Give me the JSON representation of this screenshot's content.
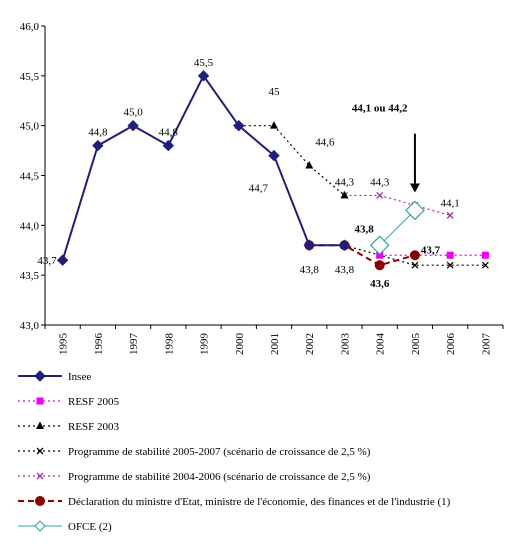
{
  "chart_data": {
    "type": "line",
    "categories": [
      "1995",
      "1996",
      "1997",
      "1998",
      "1999",
      "2000",
      "2001",
      "2002",
      "2003",
      "2004",
      "2005",
      "2006",
      "2007"
    ],
    "ylim": [
      43.0,
      46.0
    ],
    "yticks": [
      "43,0",
      "43,5",
      "44,0",
      "44,5",
      "45,0",
      "45,5",
      "46,0"
    ],
    "grid": false,
    "legend_position": "bottom",
    "series": [
      {
        "name": "Insee",
        "color": "#1f1f7a",
        "style": "solid",
        "marker": "diamond",
        "x": [
          "1995",
          "1996",
          "1997",
          "1998",
          "1999",
          "2000",
          "2001",
          "2002",
          "2003"
        ],
        "values": [
          43.65,
          44.8,
          45.0,
          44.8,
          45.5,
          45.0,
          44.7,
          43.8,
          43.8
        ]
      },
      {
        "name": "RESF 2005",
        "color": "#ee00ee",
        "style": "dotted",
        "marker": "square",
        "x": [
          "2004",
          "2005",
          "2006",
          "2007"
        ],
        "values": [
          43.7,
          43.7,
          43.7,
          43.7
        ]
      },
      {
        "name": "RESF 2003",
        "color": "#000000",
        "style": "dotted",
        "marker": "triangle",
        "x": [
          "2000",
          "2001",
          "2002",
          "2003"
        ],
        "values": [
          45.0,
          45.0,
          44.6,
          44.3
        ]
      },
      {
        "name": "Programme de stabilité 2005-2007 (scénario de croissance de 2,5 %)",
        "color": "#000000",
        "style": "dotted",
        "marker": "x",
        "x": [
          "2003",
          "2004",
          "2005",
          "2006",
          "2007"
        ],
        "values": [
          43.8,
          43.7,
          43.6,
          43.6,
          43.6
        ]
      },
      {
        "name": "Programme de stabilité 2004-2006 (scénario de croissance de 2,5 %)",
        "color": "#9b30a0",
        "style": "dotted",
        "marker": "x",
        "x": [
          "2003",
          "2004",
          "2005",
          "2006"
        ],
        "values": [
          44.3,
          44.3,
          44.2,
          44.1
        ]
      },
      {
        "name": "Déclaration du ministre d'Etat, ministre de l'économie, des finances et de l'industrie (1)",
        "color": "#8b0000",
        "style": "dashed",
        "marker": "circle",
        "x": [
          "2002",
          "2003",
          "2004",
          "2005"
        ],
        "values": [
          43.8,
          43.8,
          43.6,
          43.7
        ]
      },
      {
        "name": "OFCE (2)",
        "color": "#2fa0a8",
        "style": "solid",
        "marker": "open-diamond",
        "x": [
          "2004",
          "2005"
        ],
        "values": [
          43.8,
          44.15
        ]
      }
    ],
    "annotations": [
      {
        "text": "43,7",
        "x": "1995",
        "y": 43.65,
        "pos": "left"
      },
      {
        "text": "44,8",
        "x": "1996",
        "y": 44.8,
        "pos": "above"
      },
      {
        "text": "45,0",
        "x": "1997",
        "y": 45.0,
        "pos": "above"
      },
      {
        "text": "44,8",
        "x": "1998",
        "y": 44.8,
        "pos": "above"
      },
      {
        "text": "45,5",
        "x": "1999",
        "y": 45.5,
        "pos": "above"
      },
      {
        "text": "45",
        "x": "2001",
        "y": 45.35,
        "pos": "center"
      },
      {
        "text": "44,6",
        "x": "2002",
        "y": 44.84,
        "pos": "right"
      },
      {
        "text": "44,7",
        "x": "2001",
        "y": 44.38,
        "pos": "left"
      },
      {
        "text": "44,3",
        "x": "2003",
        "y": 44.44,
        "pos": "center"
      },
      {
        "text": "44,3",
        "x": "2004",
        "y": 44.44,
        "pos": "center"
      },
      {
        "text": "44,1",
        "x": "2006",
        "y": 44.23,
        "pos": "center"
      },
      {
        "text": "43,8",
        "x": "2002",
        "y": 43.56,
        "pos": "center"
      },
      {
        "text": "43,8",
        "x": "2003",
        "y": 43.56,
        "pos": "center"
      },
      {
        "text": "43,8",
        "x": "2004",
        "y": 43.97,
        "pos": "left",
        "bold": true
      },
      {
        "text": "43,7",
        "x": "2005",
        "y": 43.76,
        "pos": "right",
        "bold": true
      },
      {
        "text": "43,6",
        "x": "2004",
        "y": 43.42,
        "pos": "center",
        "bold": true
      },
      {
        "text": "44,1 ou 44,2",
        "x": "2004",
        "y": 45.18,
        "pos": "center",
        "bold": true
      }
    ],
    "arrow": {
      "x": "2005",
      "from": 44.92,
      "to": 44.33
    }
  }
}
